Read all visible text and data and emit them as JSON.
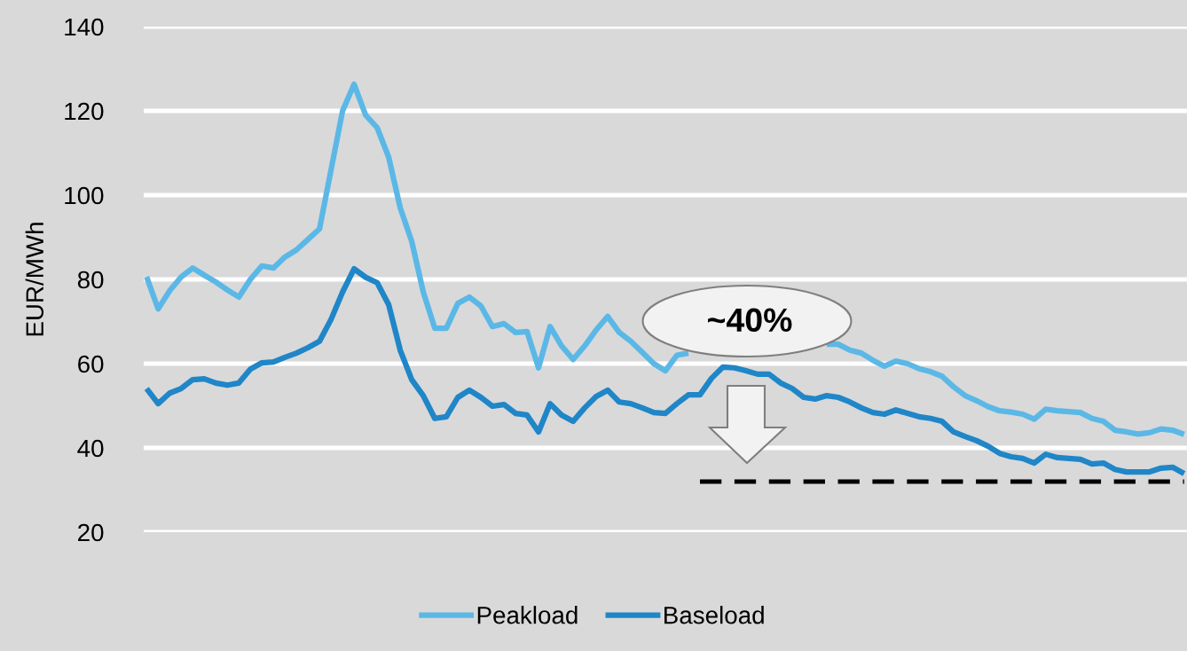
{
  "chart_data": {
    "type": "line",
    "ylabel": "EUR/MWh",
    "categories": [
      null,
      null,
      null,
      null,
      null,
      null,
      null,
      null,
      null,
      null,
      null,
      null,
      null,
      null,
      null,
      null,
      null,
      null,
      null,
      null,
      null,
      null,
      null,
      null,
      null,
      null,
      null,
      null,
      null,
      null,
      null,
      null,
      null,
      null,
      null,
      null,
      null,
      null,
      null,
      null,
      null,
      null,
      null,
      null,
      null,
      null,
      null,
      null,
      null,
      null,
      null,
      null,
      null,
      null,
      null,
      null,
      null,
      null,
      null,
      null,
      null,
      null,
      null,
      null,
      null,
      null,
      null,
      null,
      null,
      null,
      null,
      null,
      null,
      null,
      null,
      null,
      null,
      null,
      null,
      null,
      null,
      null,
      null,
      null,
      null,
      null,
      null,
      null,
      null,
      null,
      null
    ],
    "ylim": [
      20,
      140
    ],
    "yticks": [
      20,
      40,
      60,
      80,
      100,
      120,
      140
    ],
    "grid": "y",
    "legend": "bottom",
    "marker": "none",
    "line_style": "solid",
    "annotations": [
      "~40%"
    ],
    "series": [
      {
        "name": "Peakload",
        "color": "#5bb8e6",
        "values": [
          80.6,
          73,
          77.3,
          80.6,
          82.7,
          81,
          79.4,
          77.5,
          75.8,
          80,
          83.2,
          82.7,
          85.3,
          87,
          89.5,
          92,
          106,
          120,
          126.3,
          119,
          116,
          109,
          97,
          89,
          77,
          68.4,
          68.4,
          74.3,
          75.8,
          73.7,
          68.8,
          69.5,
          67.4,
          67.6,
          59,
          68.8,
          64.2,
          61,
          64.2,
          68,
          71.2,
          67.4,
          65.3,
          62.7,
          60,
          58.3,
          62,
          62.5,
          null,
          null,
          null,
          null,
          null,
          null,
          null,
          null,
          null,
          null,
          null,
          64.6,
          64.6,
          63.2,
          62.5,
          60.8,
          59.4,
          60.6,
          60,
          58.8,
          58.1,
          57,
          54.5,
          52.4,
          51.2,
          49.8,
          48.8,
          48.5,
          48,
          46.8,
          49.2,
          48.8,
          48.6,
          48.4,
          47,
          46.3,
          44.2,
          43.8,
          43.3,
          43.6,
          44.5,
          44.2,
          43.2
        ]
      },
      {
        "name": "Baseload",
        "color": "#1f86c8",
        "values": [
          54.1,
          50.5,
          53,
          54.1,
          56.2,
          56.4,
          55.4,
          54.9,
          55.4,
          58.7,
          60.2,
          60.4,
          61.5,
          62.5,
          63.8,
          65.3,
          70.5,
          77,
          82.5,
          80.5,
          79.2,
          74,
          63.2,
          56.2,
          52.4,
          47,
          47.4,
          52,
          53.7,
          52,
          49.9,
          50.3,
          48.2,
          47.8,
          43.8,
          50.5,
          47.8,
          46.3,
          49.5,
          52.2,
          53.7,
          50.9,
          50.5,
          49.5,
          48.4,
          48.2,
          50.5,
          52.6,
          52.6,
          56.5,
          59.2,
          59,
          58.3,
          57.5,
          57.5,
          55.4,
          54.1,
          52,
          51.6,
          52.4,
          52,
          50.9,
          49.5,
          48.4,
          48,
          49,
          48.2,
          47.4,
          47,
          46.3,
          43.8,
          42.7,
          41.7,
          40.4,
          38.7,
          37.9,
          37.5,
          36.4,
          38.5,
          37.7,
          37.5,
          37.3,
          36.2,
          36.4,
          34.9,
          34.3,
          34.3,
          34.3,
          35.2,
          35.4,
          33.9
        ]
      },
      {
        "color": "#000000",
        "line_style": "dashed",
        "values": [
          null,
          null,
          null,
          null,
          null,
          null,
          null,
          null,
          null,
          null,
          null,
          null,
          null,
          null,
          null,
          null,
          null,
          null,
          null,
          null,
          null,
          null,
          null,
          null,
          null,
          null,
          null,
          null,
          null,
          null,
          null,
          null,
          null,
          null,
          null,
          null,
          null,
          null,
          null,
          null,
          null,
          null,
          null,
          null,
          null,
          null,
          null,
          null,
          32,
          32,
          32,
          32,
          32,
          32,
          32,
          32,
          32,
          32,
          32,
          32,
          32,
          32,
          32,
          32,
          32,
          32,
          32,
          32,
          32,
          32,
          32,
          32,
          32,
          32,
          32,
          32,
          32,
          32,
          32,
          32,
          32,
          32,
          32,
          32,
          32,
          32,
          32,
          32,
          32,
          32,
          32
        ]
      }
    ]
  }
}
